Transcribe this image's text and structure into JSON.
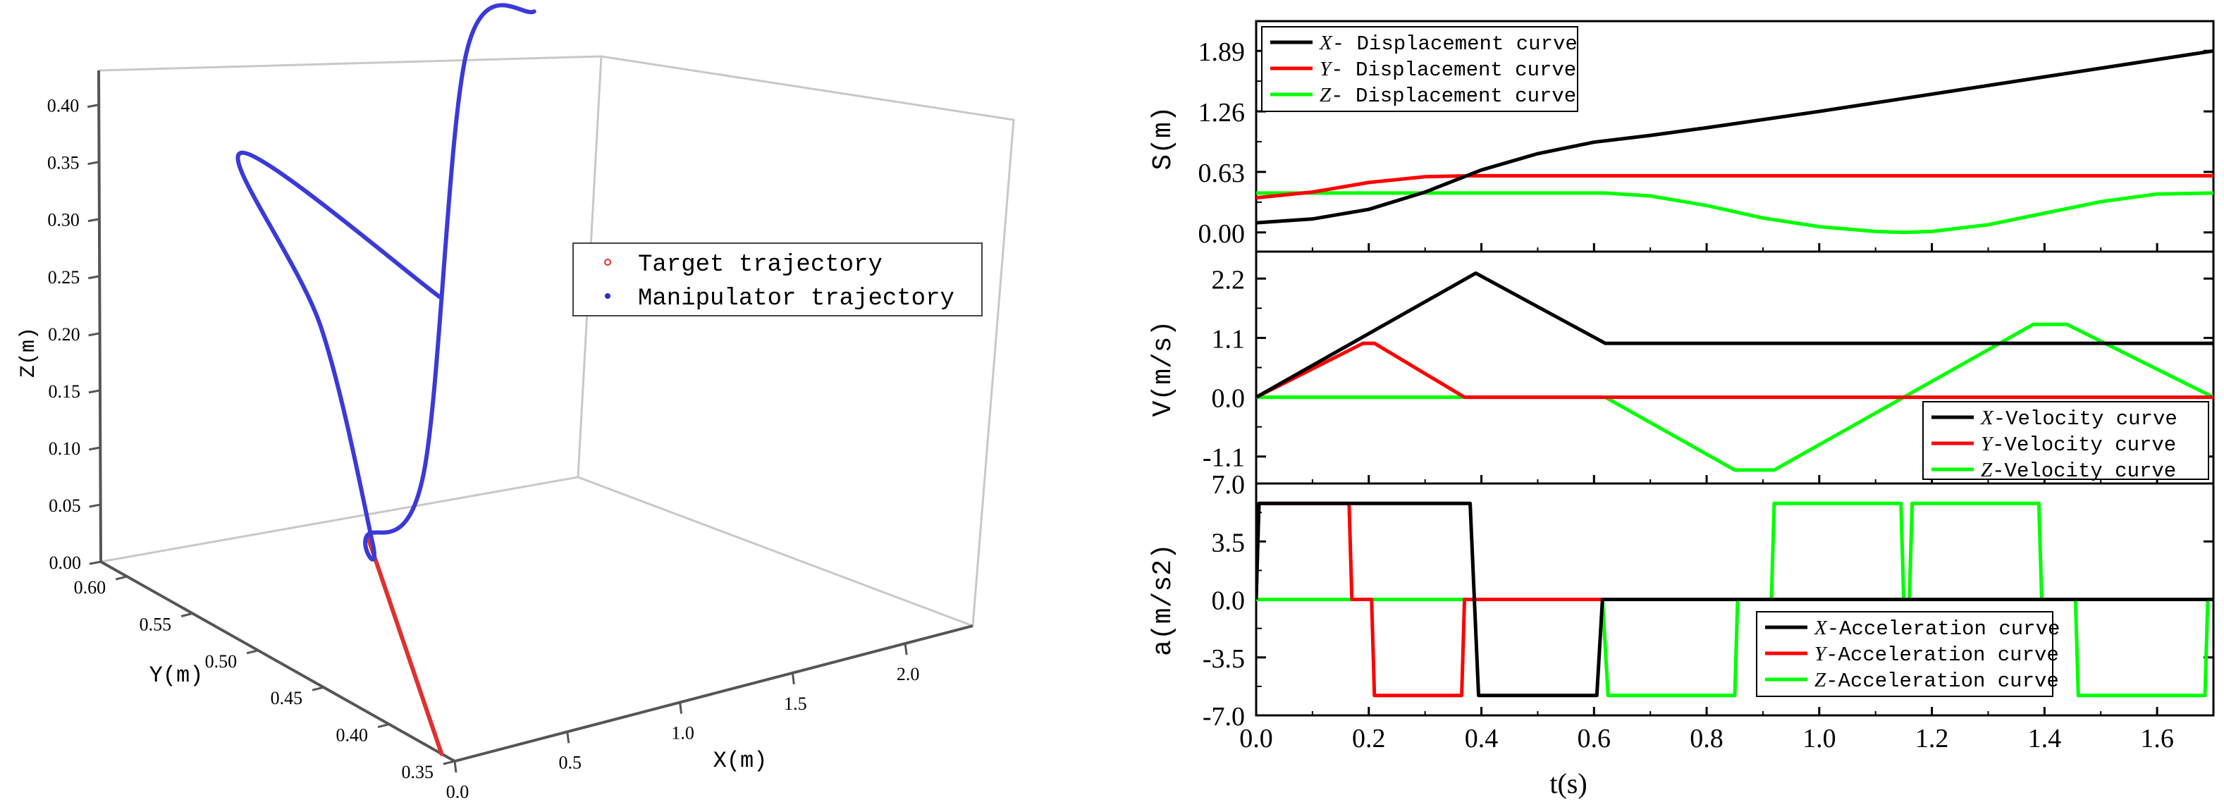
{
  "chart_data": [
    {
      "type": "line3d",
      "title": "",
      "legend": {
        "position": "center-right",
        "entries": [
          {
            "label": "Target trajectory",
            "color": "#e03030"
          },
          {
            "label": "Manipulator trajectory",
            "color": "#2a2ad0"
          }
        ]
      },
      "axes": {
        "x": {
          "label": "X(m)",
          "ticks": [
            "0.0",
            "0.5",
            "1.0",
            "1.5",
            "2.0"
          ],
          "range": [
            0,
            2.3
          ]
        },
        "y": {
          "label": "Y(m)",
          "ticks": [
            "0.60",
            "0.55",
            "0.50",
            "0.45",
            "0.40",
            "0.35"
          ],
          "range": [
            0.62,
            0.35
          ]
        },
        "z": {
          "label": "Z(m)",
          "ticks": [
            "0.00",
            "0.05",
            "0.10",
            "0.15",
            "0.20",
            "0.25",
            "0.30",
            "0.35",
            "0.40"
          ],
          "range": [
            0,
            0.43
          ]
        }
      },
      "series": [
        {
          "name": "Target trajectory",
          "points": [
            [
              0.0,
              0.36,
              0.0
            ],
            [
              0.95,
              0.58,
              0.0
            ]
          ]
        },
        {
          "name": "Manipulator trajectory",
          "points": [
            [
              0.0,
              0.36,
              0.4
            ],
            [
              0.05,
              0.52,
              0.42
            ],
            [
              0.4,
              0.52,
              0.25
            ],
            [
              0.8,
              0.55,
              0.02
            ],
            [
              0.95,
              0.58,
              0.0
            ],
            [
              1.2,
              0.58,
              0.04
            ],
            [
              1.4,
              0.58,
              0.4
            ],
            [
              1.7,
              0.58,
              0.42
            ]
          ]
        }
      ]
    },
    {
      "type": "line",
      "title": "",
      "xlabel": "",
      "ylabel": "S(m)",
      "xlim": [
        0,
        1.7
      ],
      "ylim": [
        -0.2,
        2.2
      ],
      "yticks": [
        "0.00",
        "0.63",
        "1.26",
        "1.89"
      ],
      "legend": "top-left",
      "series": [
        {
          "name_var": "X",
          "name_rest": "- Displacement curve",
          "color": "#000000",
          "x": [
            0,
            0.1,
            0.2,
            0.3,
            0.4,
            0.5,
            0.6,
            0.7,
            0.8,
            1.0,
            1.2,
            1.4,
            1.6,
            1.7
          ],
          "y": [
            0.1,
            0.14,
            0.24,
            0.42,
            0.65,
            0.82,
            0.94,
            1.01,
            1.09,
            1.26,
            1.44,
            1.62,
            1.8,
            1.89
          ]
        },
        {
          "name_var": "Y",
          "name_rest": "- Displacement curve",
          "color": "#ff0000",
          "x": [
            0,
            0.1,
            0.2,
            0.3,
            0.38,
            1.7
          ],
          "y": [
            0.36,
            0.42,
            0.52,
            0.58,
            0.59,
            0.59
          ]
        },
        {
          "name_var": "Z",
          "name_rest": "- Displacement curve",
          "color": "#00ff00",
          "x": [
            0,
            0.62,
            0.7,
            0.8,
            0.9,
            1.0,
            1.1,
            1.15,
            1.2,
            1.3,
            1.4,
            1.5,
            1.6,
            1.7
          ],
          "y": [
            0.41,
            0.41,
            0.38,
            0.28,
            0.15,
            0.06,
            0.01,
            0.0,
            0.01,
            0.08,
            0.2,
            0.32,
            0.4,
            0.41
          ]
        }
      ]
    },
    {
      "type": "line",
      "title": "",
      "xlabel": "",
      "ylabel": "V(m/s)",
      "xlim": [
        0,
        1.7
      ],
      "ylim": [
        -1.6,
        2.7
      ],
      "yticks": [
        "-1.1",
        "0.0",
        "1.1",
        "2.2"
      ],
      "legend": "bottom-right",
      "series": [
        {
          "name_var": "X",
          "name_rest": "-Velocity curve",
          "color": "#000000",
          "x": [
            0,
            0.39,
            0.62,
            1.7
          ],
          "y": [
            0,
            2.3,
            1.0,
            1.0
          ]
        },
        {
          "name_var": "Y",
          "name_rest": "-Velocity curve",
          "color": "#ff0000",
          "x": [
            0,
            0.19,
            0.21,
            0.37,
            1.7
          ],
          "y": [
            0,
            1.0,
            1.0,
            0,
            0
          ]
        },
        {
          "name_var": "Z",
          "name_rest": "-Velocity curve",
          "color": "#00ff00",
          "x": [
            0,
            0.62,
            0.85,
            0.92,
            1.15,
            1.38,
            1.44,
            1.7
          ],
          "y": [
            0,
            0,
            -1.35,
            -1.35,
            0,
            1.35,
            1.35,
            0
          ]
        }
      ]
    },
    {
      "type": "line",
      "title": "",
      "xlabel": "t(s)",
      "ylabel": "a(m/s2)",
      "xlim": [
        0,
        1.7
      ],
      "ylim": [
        -7,
        7
      ],
      "yticks": [
        "-7.0",
        "-3.5",
        "0.0",
        "3.5",
        "7.0"
      ],
      "xticks": [
        "0.0",
        "0.2",
        "0.4",
        "0.6",
        "0.8",
        "1.0",
        "1.2",
        "1.4",
        "1.6"
      ],
      "legend": "bottom-right",
      "series": [
        {
          "name_var": "X",
          "name_rest": "-Acceleration curve",
          "color": "#000000",
          "x": [
            0,
            0.005,
            0.38,
            0.395,
            0.605,
            0.615,
            1.7
          ],
          "y": [
            0,
            5.8,
            5.8,
            -5.8,
            -5.8,
            0,
            0
          ]
        },
        {
          "name_var": "Y",
          "name_rest": "-Acceleration curve",
          "color": "#ff0000",
          "x": [
            0,
            0.005,
            0.165,
            0.17,
            0.205,
            0.21,
            0.365,
            0.37,
            1.7
          ],
          "y": [
            0,
            5.8,
            5.8,
            0,
            0,
            -5.8,
            -5.8,
            0,
            0
          ]
        },
        {
          "name_var": "Z",
          "name_rest": "-Acceleration curve",
          "color": "#00ff00",
          "x": [
            0,
            0.615,
            0.625,
            0.85,
            0.855,
            0.915,
            0.92,
            1.145,
            1.15,
            1.16,
            1.165,
            1.39,
            1.395,
            1.455,
            1.46,
            1.685,
            1.69,
            1.7
          ],
          "y": [
            0,
            0,
            -5.8,
            -5.8,
            0,
            0,
            5.8,
            5.8,
            0,
            0,
            5.8,
            5.8,
            0,
            0,
            -5.8,
            -5.8,
            0,
            0
          ]
        }
      ]
    }
  ]
}
